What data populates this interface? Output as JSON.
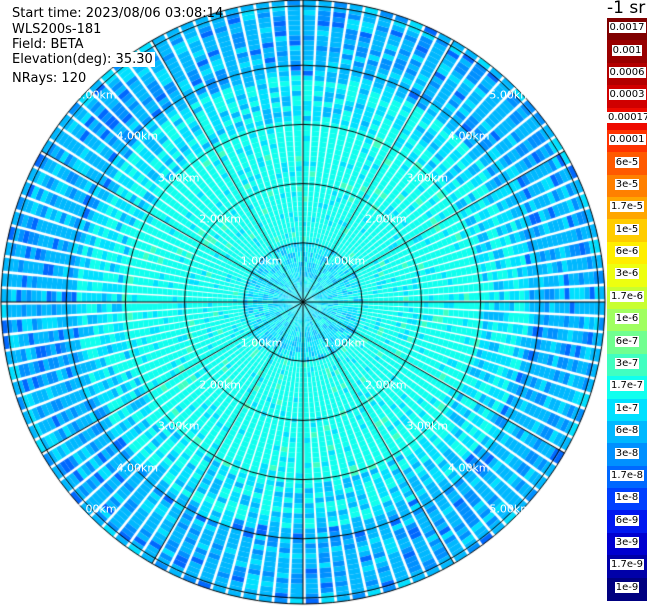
{
  "info": {
    "start_time": "Start time: 2023/08/06 03:08:14",
    "instrument": "WLS200s-181",
    "field": "Field: BETA",
    "elevation": "Elevation(deg): 35.30",
    "nrays": "NRays: 120"
  },
  "chart_data": {
    "type": "polar-ppi",
    "field": "BETA",
    "elevation_deg": 35.3,
    "n_rays": 120,
    "range_rings_km": [
      1,
      2,
      3,
      4,
      5
    ],
    "range_labels": [
      "1.00km",
      "2.00km",
      "3.00km",
      "4.00km",
      "5.00km"
    ],
    "spoke_interval_deg": 30,
    "colorbar": {
      "title": "-1 sr",
      "labels": [
        "0.0017",
        "0.001",
        "0.0006",
        "0.0003",
        "0.00017",
        "0.0001",
        "6e-5",
        "3e-5",
        "1.7e-5",
        "1e-5",
        "6e-6",
        "3e-6",
        "1.7e-6",
        "1e-6",
        "6e-7",
        "3e-7",
        "1.7e-7",
        "1e-7",
        "6e-8",
        "3e-8",
        "1.7e-8",
        "1e-8",
        "6e-9",
        "3e-9",
        "1.7e-9",
        "1e-9"
      ],
      "colors": [
        "#7f0000",
        "#990000",
        "#b30000",
        "#d00000",
        "#ee0a00",
        "#ff3300",
        "#ff5a00",
        "#ff8000",
        "#ffa600",
        "#ffcc00",
        "#ffee00",
        "#eeff10",
        "#c8ff30",
        "#a0ff60",
        "#70ff90",
        "#40ffc0",
        "#10ffee",
        "#00e0ff",
        "#00b8ff",
        "#0090ff",
        "#0068ff",
        "#0040ff",
        "#0018f0",
        "#0000d0",
        "#0000a8",
        "#000080"
      ]
    }
  }
}
